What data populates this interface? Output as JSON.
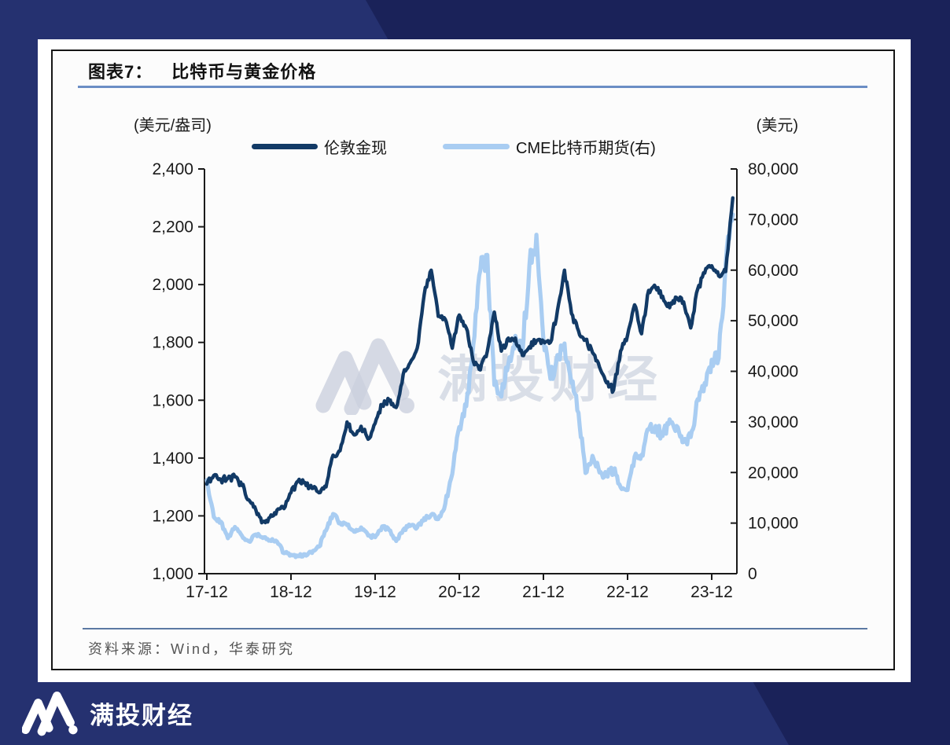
{
  "brand": {
    "name": "满投财经",
    "watermark_text": "满投财经",
    "bg_color_light": "#253170",
    "bg_color_dark": "#1a2259"
  },
  "figure": {
    "title_prefix": "图表7：",
    "title": "比特币与黄金价格",
    "left_axis_unit_label": "(美元/盎司)",
    "right_axis_unit_label": "(美元)",
    "source": "资料来源：Wind，华泰研究",
    "title_underline_color": "#6b8ec5",
    "divider_color": "#5c79a3"
  },
  "chart_data": {
    "type": "line",
    "title": "比特币与黄金价格",
    "grid": false,
    "legend_position": "top",
    "x_monthly_start": "2017-12",
    "x_tick_labels": [
      "17-12",
      "18-12",
      "19-12",
      "20-12",
      "21-12",
      "22-12",
      "23-12"
    ],
    "left_axis": {
      "unit": "美元/盎司",
      "min": 1000,
      "max": 2400,
      "tick_step": 200,
      "tick_labels": [
        "2,400",
        "2,200",
        "2,000",
        "1,800",
        "1,600",
        "1,400",
        "1,200",
        "1,000"
      ]
    },
    "right_axis": {
      "unit": "美元",
      "min": 0,
      "max": 80000,
      "tick_step": 10000,
      "tick_labels": [
        "80,000",
        "70,000",
        "60,000",
        "50,000",
        "40,000",
        "30,000",
        "20,000",
        "10,000",
        "0"
      ]
    },
    "series": [
      {
        "name": "伦敦金现",
        "axis": "left",
        "color": "#123a66",
        "stroke_width": 4.4,
        "values": [
          1310,
          1340,
          1325,
          1330,
          1335,
          1305,
          1255,
          1220,
          1180,
          1195,
          1220,
          1225,
          1280,
          1320,
          1315,
          1295,
          1280,
          1300,
          1410,
          1425,
          1525,
          1480,
          1510,
          1465,
          1520,
          1585,
          1600,
          1575,
          1690,
          1730,
          1780,
          1965,
          2050,
          1890,
          1880,
          1780,
          1895,
          1850,
          1735,
          1705,
          1770,
          1905,
          1770,
          1815,
          1815,
          1755,
          1785,
          1805,
          1805,
          1800,
          1910,
          2050,
          1900,
          1840,
          1810,
          1765,
          1715,
          1660,
          1635,
          1770,
          1825,
          1930,
          1830,
          1980,
          1990,
          1960,
          1920,
          1955,
          1940,
          1850,
          1985,
          2040,
          2065,
          2030,
          2045,
          2300
        ]
      },
      {
        "name": "CME比特币期货(右)",
        "axis": "right",
        "color": "#a9cdf2",
        "stroke_width": 5.2,
        "values": [
          18500,
          11200,
          10300,
          7000,
          9250,
          7500,
          6400,
          7750,
          7050,
          6600,
          6350,
          4050,
          3750,
          3450,
          3850,
          4100,
          5350,
          8550,
          11800,
          10100,
          9600,
          8300,
          9150,
          7550,
          7200,
          9350,
          8600,
          6450,
          8650,
          9450,
          9150,
          11000,
          11650,
          10800,
          13800,
          19700,
          29000,
          33100,
          45200,
          60000,
          63000,
          37300,
          35000,
          41500,
          47000,
          43800,
          61000,
          67000,
          46200,
          38500,
          43200,
          45500,
          37700,
          31800,
          19900,
          23300,
          20000,
          19400,
          20500,
          17100,
          16550,
          23100,
          23500,
          28500,
          29200,
          27200,
          30500,
          29200,
          26000,
          27000,
          34500,
          37700,
          42300,
          42600,
          61200,
          71000
        ]
      }
    ]
  }
}
